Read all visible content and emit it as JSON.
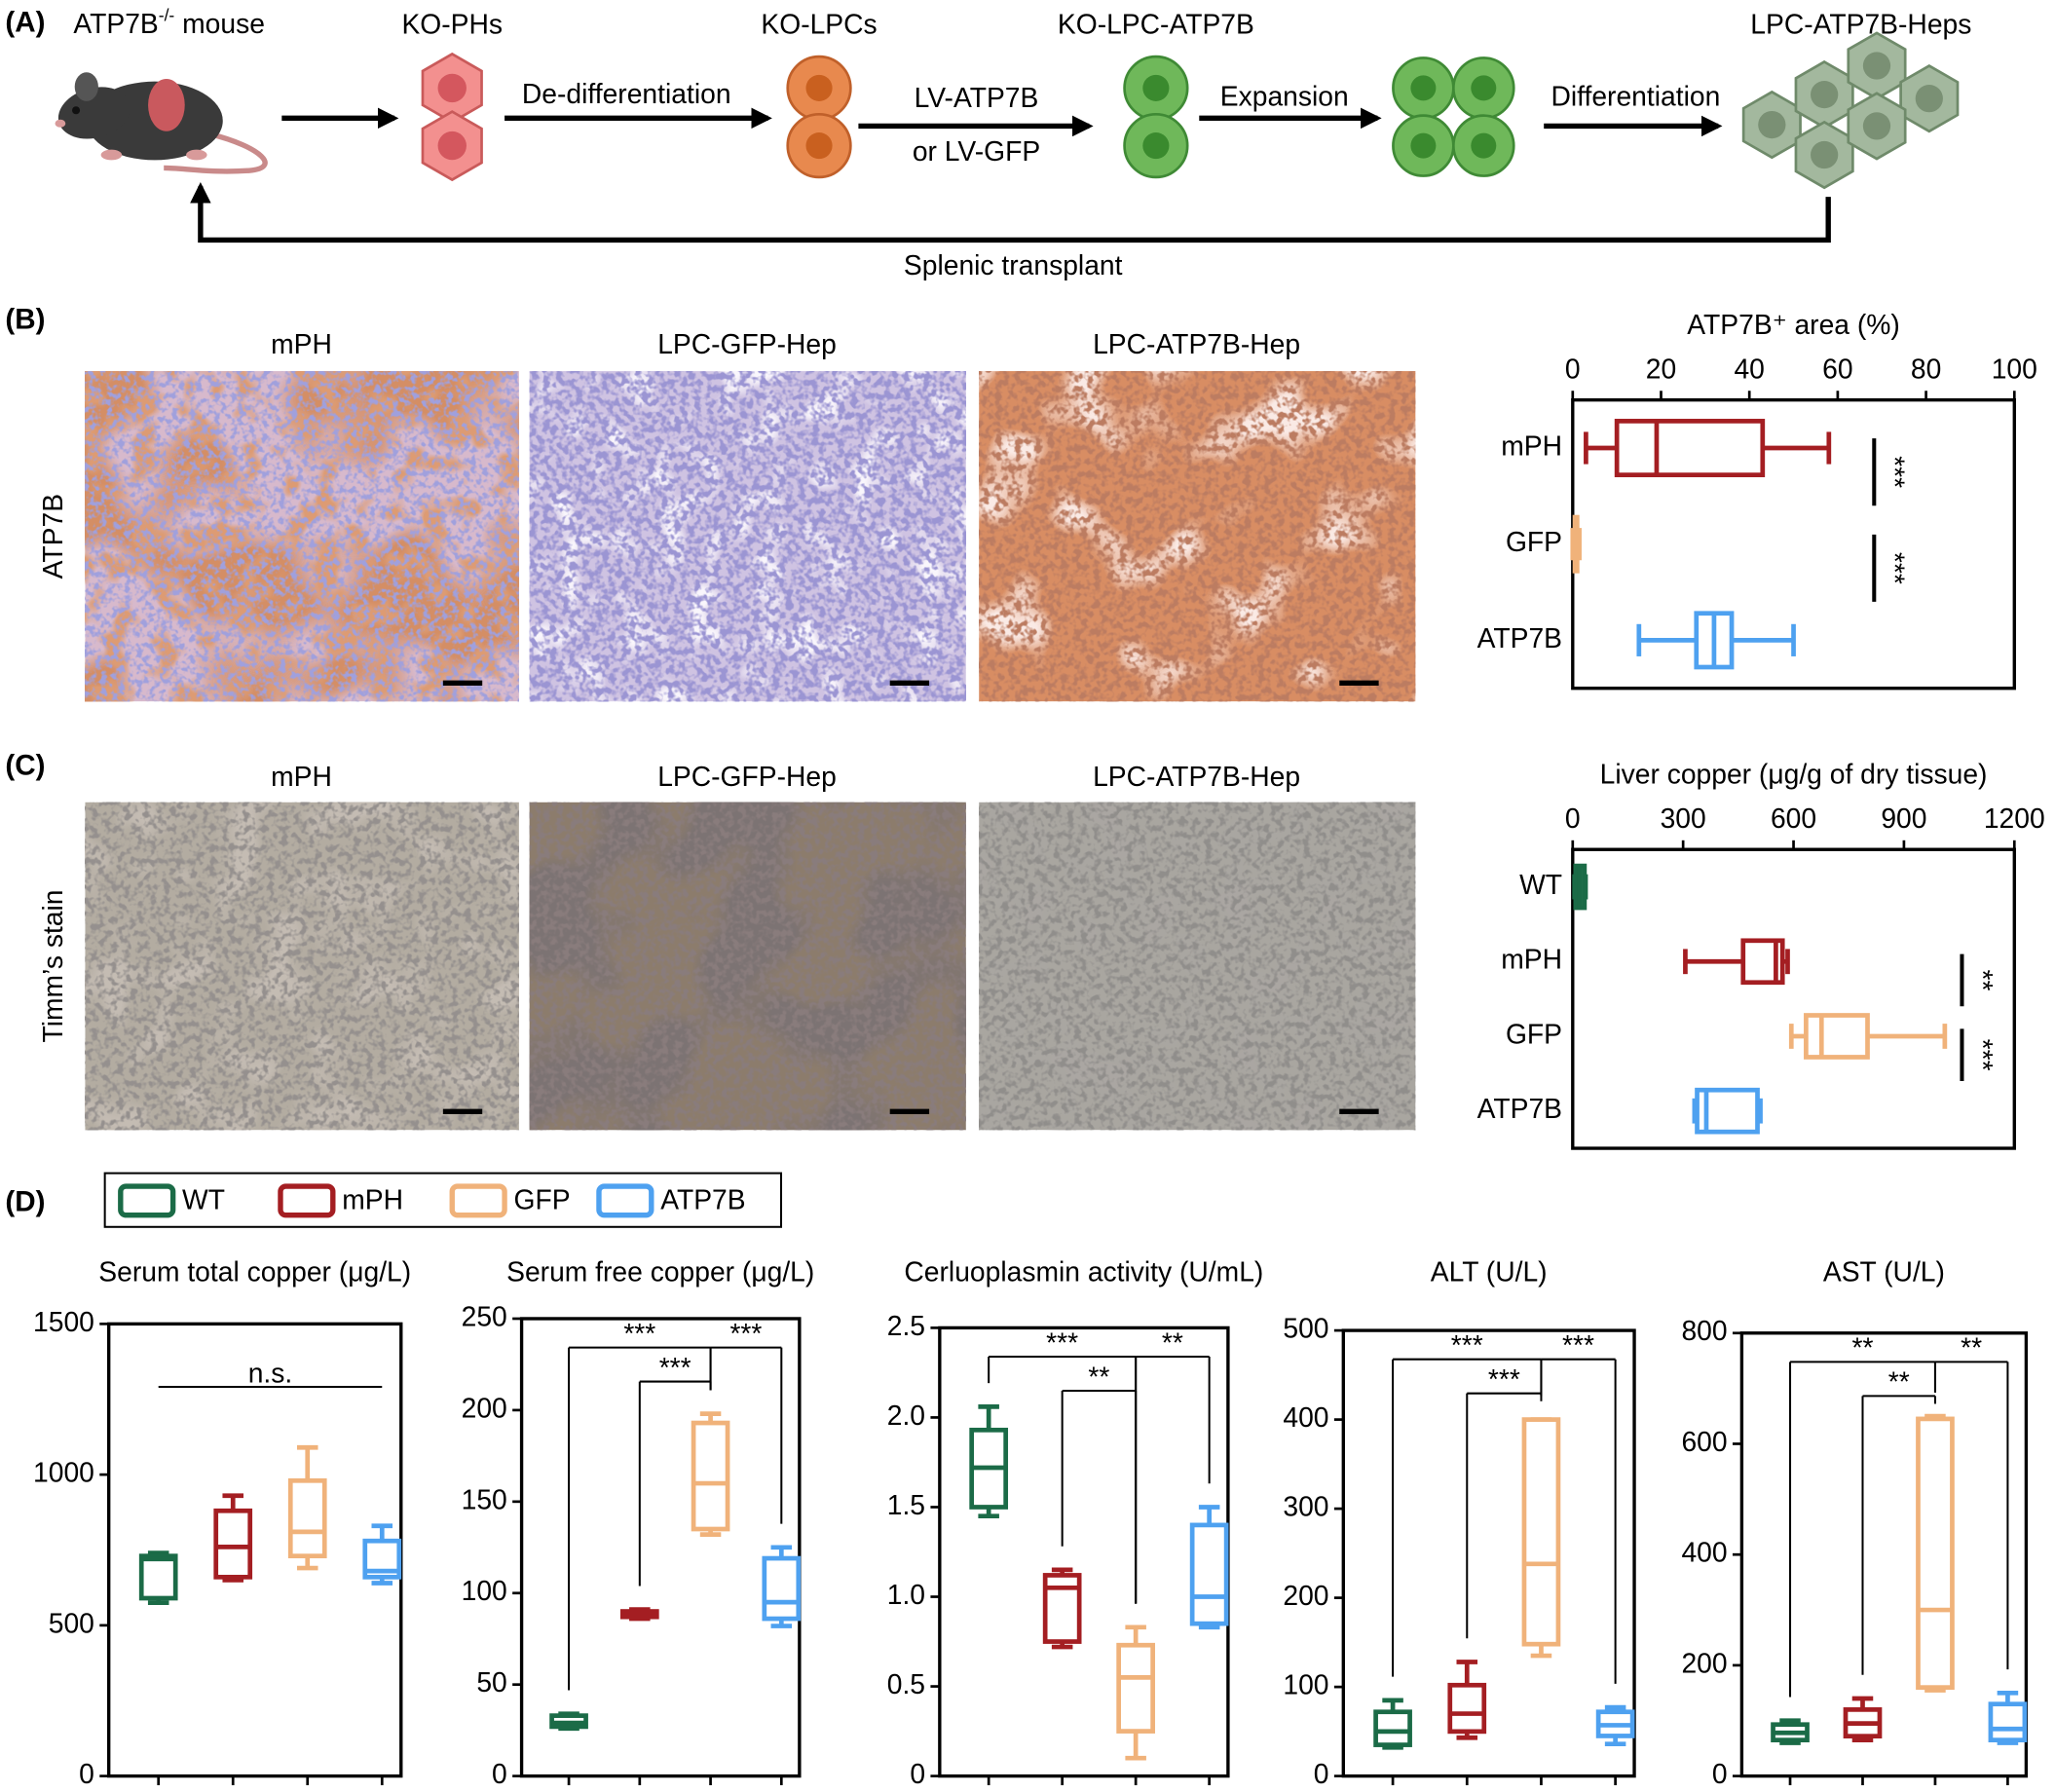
{
  "panel_labels": [
    "(A)",
    "(B)",
    "(C)",
    "(D)"
  ],
  "workflow": {
    "source": {
      "name": "ATP7B",
      "superscript": "-/-",
      "suffix": " mouse"
    },
    "stages": [
      "KO-PHs",
      "KO-LPCs",
      "KO-LPC-ATP7B",
      "LPC-ATP7B-Heps"
    ],
    "steps": [
      "De-differentiation",
      "LV-ATP7B",
      "or LV-GFP",
      "Expansion",
      "Differentiation"
    ],
    "return_step": "Splenic transplant"
  },
  "micrographs": [
    {
      "row_label": "ATP7B",
      "columns": [
        "mPH",
        "LPC-GFP-Hep",
        "LPC-ATP7B-Hep"
      ]
    },
    {
      "row_label": "Timm’s stain",
      "columns": [
        "mPH",
        "LPC-GFP-Hep",
        "LPC-ATP7B-Hep"
      ]
    }
  ],
  "legend": [
    {
      "name": "WT",
      "color": "#1b6b47"
    },
    {
      "name": "mPH",
      "color": "#a41e22"
    },
    {
      "name": "GFP",
      "color": "#f0b27a"
    },
    {
      "name": "ATP7B",
      "color": "#4ea1f0"
    }
  ],
  "chart_data": [
    {
      "type": "box",
      "orientation": "horizontal",
      "title": "ATP7B⁺ area (%)",
      "categories": [
        "mPH",
        "GFP",
        "ATP7B"
      ],
      "xlim": [
        0,
        100
      ],
      "xticks": [
        0,
        20,
        40,
        60,
        80,
        100
      ],
      "boxes": [
        {
          "color": "#a41e22",
          "min": 3,
          "q1": 10,
          "median": 19,
          "q3": 43,
          "max": 58
        },
        {
          "color": "#f0b27a",
          "min": 0,
          "q1": 0.5,
          "median": 0.8,
          "q3": 1,
          "max": 1.5
        },
        {
          "color": "#4ea1f0",
          "min": 15,
          "q1": 28,
          "median": 32,
          "q3": 36,
          "max": 50
        }
      ],
      "significance": [
        {
          "pair": [
            "mPH",
            "GFP"
          ],
          "label": "***"
        },
        {
          "pair": [
            "GFP",
            "ATP7B"
          ],
          "label": "***"
        }
      ]
    },
    {
      "type": "box",
      "orientation": "horizontal",
      "title": "Liver copper (μg/g of dry tissue)",
      "categories": [
        "WT",
        "mPH",
        "GFP",
        "ATP7B"
      ],
      "xlim": [
        0,
        1200
      ],
      "xticks": [
        0,
        300,
        600,
        900,
        1200
      ],
      "boxes": [
        {
          "color": "#1b6b47",
          "min": 5,
          "q1": 8,
          "median": 20,
          "q3": 32,
          "max": 35
        },
        {
          "color": "#a41e22",
          "min": 306,
          "q1": 463,
          "median": 552,
          "q3": 570,
          "max": 584
        },
        {
          "color": "#f0b27a",
          "min": 594,
          "q1": 634,
          "median": 676,
          "q3": 801,
          "max": 1011
        },
        {
          "color": "#4ea1f0",
          "min": 331,
          "q1": 338,
          "median": 363,
          "q3": 502,
          "max": 510
        }
      ],
      "significance": [
        {
          "pair": [
            "mPH",
            "GFP"
          ],
          "label": "**"
        },
        {
          "pair": [
            "GFP",
            "ATP7B"
          ],
          "label": "***"
        }
      ]
    },
    {
      "type": "box",
      "orientation": "vertical",
      "title": "Serum total copper (μg/L)",
      "ylim": [
        0,
        1500
      ],
      "yticks": [
        0,
        500,
        1000,
        1500
      ],
      "boxes": [
        {
          "name": "WT",
          "color": "#1b6b47",
          "min": 575,
          "q1": 590,
          "median": 720,
          "q3": 730,
          "max": 740
        },
        {
          "name": "mPH",
          "color": "#a41e22",
          "min": 650,
          "q1": 660,
          "median": 760,
          "q3": 880,
          "max": 930
        },
        {
          "name": "GFP",
          "color": "#f0b27a",
          "min": 690,
          "q1": 730,
          "median": 810,
          "q3": 980,
          "max": 1090
        },
        {
          "name": "ATP7B",
          "color": "#4ea1f0",
          "min": 640,
          "q1": 660,
          "median": 680,
          "q3": 780,
          "max": 830
        }
      ],
      "significance": [
        {
          "pair": [
            "WT",
            "ATP7B"
          ],
          "label": "n.s.",
          "bracket": false
        }
      ]
    },
    {
      "type": "box",
      "orientation": "vertical",
      "title": "Serum free copper  (μg/L)",
      "ylim": [
        0,
        250
      ],
      "yticks": [
        0,
        50,
        100,
        150,
        200,
        250
      ],
      "boxes": [
        {
          "name": "WT",
          "color": "#1b6b47",
          "min": 26,
          "q1": 27,
          "median": 29,
          "q3": 33,
          "max": 34
        },
        {
          "name": "mPH",
          "color": "#a41e22",
          "min": 86,
          "q1": 87,
          "median": 88,
          "q3": 90,
          "max": 91
        },
        {
          "name": "GFP",
          "color": "#f0b27a",
          "min": 132,
          "q1": 135,
          "median": 160,
          "q3": 193,
          "max": 198
        },
        {
          "name": "ATP7B",
          "color": "#4ea1f0",
          "min": 82,
          "q1": 86,
          "median": 95,
          "q3": 119,
          "max": 125
        }
      ],
      "significance": [
        {
          "pair": [
            "WT",
            "GFP"
          ],
          "label": "***"
        },
        {
          "pair": [
            "GFP",
            "ATP7B"
          ],
          "label": "***"
        },
        {
          "pair": [
            "mPH",
            "GFP"
          ],
          "label": "***"
        }
      ]
    },
    {
      "type": "box",
      "orientation": "vertical",
      "title": "Cerluoplasmin activity (U/mL)",
      "ylim": [
        0,
        2.5
      ],
      "yticks": [
        0,
        0.5,
        {
          "value": 1,
          "label": "1.0"
        },
        1.5,
        {
          "value": 2,
          "label": "2.0"
        },
        2.5
      ],
      "boxes": [
        {
          "name": "WT",
          "color": "#1b6b47",
          "min": 1.45,
          "q1": 1.5,
          "median": 1.72,
          "q3": 1.93,
          "max": 2.06
        },
        {
          "name": "mPH",
          "color": "#a41e22",
          "min": 0.72,
          "q1": 0.75,
          "median": 1.05,
          "q3": 1.12,
          "max": 1.15
        },
        {
          "name": "GFP",
          "color": "#f0b27a",
          "min": 0.1,
          "q1": 0.25,
          "median": 0.55,
          "q3": 0.73,
          "max": 0.83
        },
        {
          "name": "ATP7B",
          "color": "#4ea1f0",
          "min": 0.83,
          "q1": 0.85,
          "median": 1.0,
          "q3": 1.4,
          "max": 1.5
        }
      ],
      "significance": [
        {
          "pair": [
            "WT",
            "GFP"
          ],
          "label": "***"
        },
        {
          "pair": [
            "GFP",
            "ATP7B"
          ],
          "label": "**"
        },
        {
          "pair": [
            "mPH",
            "GFP"
          ],
          "label": "**"
        }
      ]
    },
    {
      "type": "box",
      "orientation": "vertical",
      "title": "ALT (U/L)",
      "ylim": [
        0,
        500
      ],
      "yticks": [
        0,
        100,
        200,
        300,
        400,
        500
      ],
      "boxes": [
        {
          "name": "WT",
          "color": "#1b6b47",
          "min": 32,
          "q1": 35,
          "median": 50,
          "q3": 72,
          "max": 85
        },
        {
          "name": "mPH",
          "color": "#a41e22",
          "min": 43,
          "q1": 50,
          "median": 70,
          "q3": 102,
          "max": 128
        },
        {
          "name": "GFP",
          "color": "#f0b27a",
          "min": 135,
          "q1": 148,
          "median": 238,
          "q3": 400,
          "max": 400
        },
        {
          "name": "ATP7B",
          "color": "#4ea1f0",
          "min": 36,
          "q1": 45,
          "median": 57,
          "q3": 72,
          "max": 77
        }
      ],
      "significance": [
        {
          "pair": [
            "WT",
            "GFP"
          ],
          "label": "***"
        },
        {
          "pair": [
            "GFP",
            "ATP7B"
          ],
          "label": "***"
        },
        {
          "pair": [
            "mPH",
            "GFP"
          ],
          "label": "***"
        }
      ]
    },
    {
      "type": "box",
      "orientation": "vertical",
      "title": "AST (U/L)",
      "ylim": [
        0,
        800
      ],
      "yticks": [
        0,
        200,
        400,
        600,
        800
      ],
      "boxes": [
        {
          "name": "WT",
          "color": "#1b6b47",
          "min": 60,
          "q1": 65,
          "median": 78,
          "q3": 93,
          "max": 100
        },
        {
          "name": "mPH",
          "color": "#a41e22",
          "min": 65,
          "q1": 72,
          "median": 95,
          "q3": 120,
          "max": 140
        },
        {
          "name": "GFP",
          "color": "#f0b27a",
          "min": 155,
          "q1": 160,
          "median": 300,
          "q3": 645,
          "max": 650
        },
        {
          "name": "ATP7B",
          "color": "#4ea1f0",
          "min": 60,
          "q1": 65,
          "median": 85,
          "q3": 130,
          "max": 150
        }
      ],
      "significance": [
        {
          "pair": [
            "WT",
            "GFP"
          ],
          "label": "**"
        },
        {
          "pair": [
            "GFP",
            "ATP7B"
          ],
          "label": "**"
        },
        {
          "pair": [
            "mPH",
            "GFP"
          ],
          "label": "**"
        }
      ]
    }
  ]
}
